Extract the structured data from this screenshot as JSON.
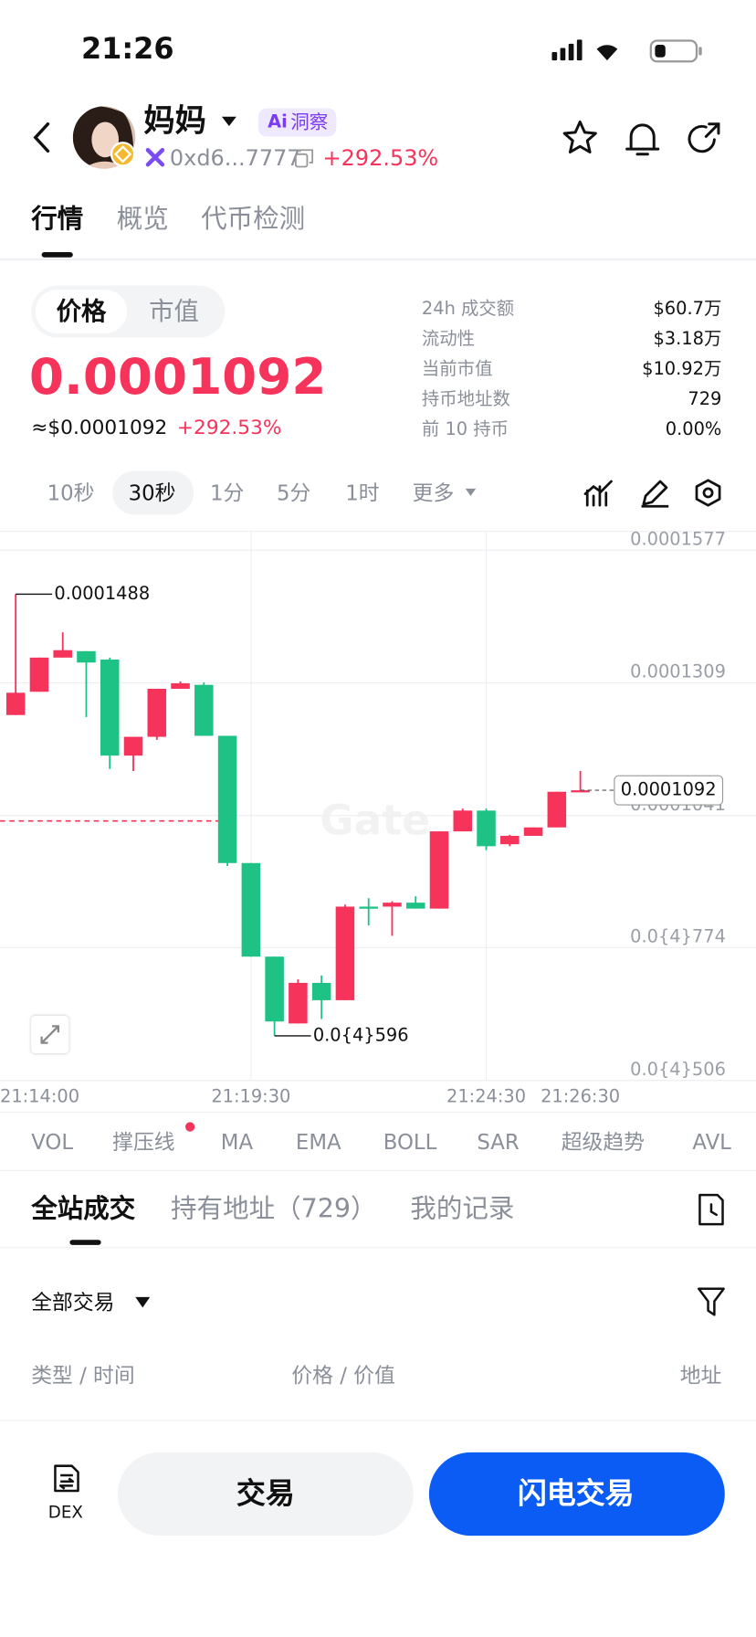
{
  "status_bar": {
    "time": "21:26"
  },
  "header": {
    "token_name": "妈妈",
    "ai_badge": {
      "icon": "Ai",
      "text": "洞察"
    },
    "address": "0xd6...7777",
    "change": "+292.53%"
  },
  "tabs": [
    "行情",
    "概览",
    "代币检测"
  ],
  "price_toggle": [
    "价格",
    "市值"
  ],
  "price": "0.0001092",
  "usd_price": "≈$0.0001092",
  "usd_change": "+292.53%",
  "stats": [
    {
      "label": "24h 成交额",
      "value": "$60.7万"
    },
    {
      "label": "流动性",
      "value": "$3.18万"
    },
    {
      "label": "当前市值",
      "value": "$10.92万"
    },
    {
      "label": "持币地址数",
      "value": "729"
    },
    {
      "label": "前 10 持币",
      "value": "0.00%"
    }
  ],
  "timeframes": [
    "10秒",
    "30秒",
    "1分",
    "5分",
    "1时",
    "更多"
  ],
  "chart_data": {
    "type": "candlestick",
    "up_color": "#f5335b",
    "down_color": "#1ec285",
    "x": [
      "21:14:30",
      "21:15:00",
      "21:15:30",
      "21:16:00",
      "21:16:30",
      "21:17:00",
      "21:17:30",
      "21:18:00",
      "21:18:30",
      "21:19:00",
      "21:19:30",
      "21:20:00",
      "21:20:30",
      "21:21:00",
      "21:21:30",
      "21:22:00",
      "21:22:30",
      "21:23:00",
      "21:23:30",
      "21:24:00",
      "21:24:30",
      "21:25:00",
      "21:25:30",
      "21:26:00",
      "21:26:30"
    ],
    "open": [
      0.0001244,
      0.0001291,
      0.000136,
      0.0001373,
      0.0001356,
      0.0001162,
      0.00012,
      0.0001297,
      0.0001305,
      0.0001202,
      9.45e-05,
      7.56e-05,
      6.21e-05,
      7.03e-05,
      6.68e-05,
      8.57e-05,
      8.57e-05,
      8.65e-05,
      8.53e-05,
      0.0001009,
      0.0001051,
      9.83e-05,
      0.0001,
      0.0001017,
      0.0001089
    ],
    "high": [
      0.0001488,
      0.000136,
      0.0001411,
      0.0001373,
      0.000136,
      0.00012,
      0.0001297,
      0.0001312,
      0.000131,
      0.0001202,
      9.45e-05,
      7.56e-05,
      7.1e-05,
      7.18e-05,
      8.61e-05,
      8.74e-05,
      8.68e-05,
      8.78e-05,
      0.0001009,
      0.0001055,
      0.0001055,
      0.0001002,
      0.0001017,
      0.0001089,
      0.0001131
    ],
    "low": [
      0.0001244,
      0.0001291,
      0.000136,
      0.000124,
      0.0001135,
      0.0001131,
      0.0001194,
      0.0001297,
      0.0001202,
      9.39e-05,
      7.56e-05,
      5.96e-05,
      6.21e-05,
      6.3e-05,
      6.68e-05,
      8.19e-05,
      7.98e-05,
      8.53e-05,
      8.53e-05,
      0.0001009,
      9.71e-05,
      9.79e-05,
      0.0001,
      0.0001017,
      0.0001089
    ],
    "close": [
      0.0001289,
      0.000136,
      0.0001375,
      0.000135,
      0.0001162,
      0.00012,
      0.0001297,
      0.0001308,
      0.0001202,
      9.45e-05,
      7.56e-05,
      6.25e-05,
      7.03e-05,
      6.68e-05,
      8.57e-05,
      8.53e-05,
      8.65e-05,
      8.53e-05,
      0.0001009,
      0.0001051,
      9.79e-05,
      0.0001,
      0.0001017,
      0.0001089,
      0.0001092
    ],
    "xlim": [
      "21:14:10",
      "21:30:14"
    ],
    "ylim": [
      5.06e-05,
      0.0001615
    ],
    "yticks": [
      0.0001577,
      0.0001309,
      0.0001041,
      {
        "value": 7.74e-05,
        "label": "0.0{4}774"
      },
      {
        "value": 5.06e-05,
        "label": "0.0{4}506"
      }
    ],
    "xticks": [
      "21:14:00",
      "21:19:30",
      "21:24:30",
      "21:26:30"
    ],
    "grid": true,
    "annotations": [
      {
        "x": "21:14:30",
        "value": 0.0001488,
        "label": "0.0001488"
      },
      {
        "x": "21:20:00",
        "value": 5.96e-05,
        "label": "0.0{4}596"
      }
    ],
    "last_price": {
      "value": 0.0001092,
      "label": "0.0001092"
    },
    "ref_line": {
      "value": 0.000103,
      "color": "#f5335b"
    },
    "watermark": "Gate"
  },
  "indicators": [
    "VOL",
    "撑压线",
    "MA",
    "EMA",
    "BOLL",
    "SAR",
    "超级趋势",
    "AVL"
  ],
  "trade_tabs": [
    "全站成交",
    "持有地址（729）",
    "我的记录"
  ],
  "filter": "全部交易",
  "columns": [
    "类型 / 时间",
    "价格 / 价值",
    "地址"
  ],
  "bottom": {
    "dex": "DEX",
    "trade": "交易",
    "flash_trade": "闪电交易"
  }
}
